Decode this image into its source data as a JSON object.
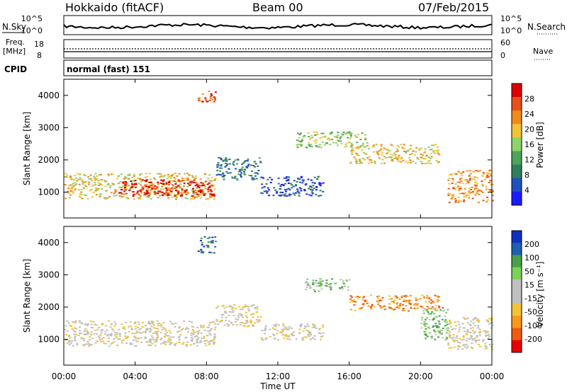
{
  "header": {
    "site": "Hokkaido (fitACF)",
    "beam": "Beam 00",
    "date": "07/Feb/2015"
  },
  "strip": {
    "nsky_label": "N.Sky",
    "nsearch_label": "N.Search",
    "freq_label_1": "Freq.",
    "freq_label_2": "[MHz]",
    "nave_label": "Nave",
    "cpid_label": "CPID",
    "noise_ticks": [
      "10^5",
      "10^0"
    ],
    "freq_ticks": [
      "18",
      "8"
    ],
    "nave_ticks": [
      "60",
      "0"
    ],
    "cpid_value": "normal (fast) 151"
  },
  "x_axis": {
    "label": "Time UT",
    "ticks": [
      "00:00",
      "04:00",
      "08:00",
      "12:00",
      "16:00",
      "20:00",
      "00:00"
    ]
  },
  "colors": {
    "power_scale": [
      "#1a1aff",
      "#2050c0",
      "#2f7f5f",
      "#4da35a",
      "#8fd26a",
      "#f2c33a",
      "#f08a1c",
      "#e8501a",
      "#dd0000"
    ],
    "velocity_scale": [
      "#e80000",
      "#f05a10",
      "#f79a1a",
      "#f2c33a",
      "#c0c0c0",
      "#c0c0c0",
      "#7dd05a",
      "#4aa04a",
      "#2060b0",
      "#1030c0"
    ]
  },
  "chart_data": [
    {
      "type": "heatmap",
      "name": "power",
      "ylabel": "Slant Range [km]",
      "yticks": [
        "1000",
        "2000",
        "3000",
        "4000"
      ],
      "ylim": [
        200,
        4500
      ],
      "xlim": [
        0,
        24
      ],
      "colorbar_label": "Power [dB]",
      "colorbar_ticks": [
        "28",
        "24",
        "20",
        "16",
        "12",
        "8",
        "4"
      ],
      "regions": [
        {
          "t0": 0.0,
          "t1": 8.5,
          "r0": 800,
          "r1": 1600,
          "level": 5
        },
        {
          "t0": 3.0,
          "t1": 8.5,
          "r0": 900,
          "r1": 1400,
          "level": 8
        },
        {
          "t0": 8.5,
          "t1": 11.0,
          "r0": 1400,
          "r1": 2100,
          "level": 2
        },
        {
          "t0": 11.0,
          "t1": 14.5,
          "r0": 900,
          "r1": 1500,
          "level": 1
        },
        {
          "t0": 13.0,
          "t1": 17.0,
          "r0": 2400,
          "r1": 2900,
          "level": 4
        },
        {
          "t0": 16.0,
          "t1": 21.0,
          "r0": 1900,
          "r1": 2500,
          "level": 5
        },
        {
          "t0": 21.5,
          "t1": 24.0,
          "r0": 700,
          "r1": 1700,
          "level": 6
        },
        {
          "t0": 7.5,
          "t1": 8.5,
          "r0": 3800,
          "r1": 4200,
          "level": 7
        }
      ]
    },
    {
      "type": "heatmap",
      "name": "velocity",
      "ylabel": "Slant Range [km]",
      "yticks": [
        "1000",
        "2000",
        "3000",
        "4000"
      ],
      "ylim": [
        200,
        4500
      ],
      "xlim": [
        0,
        24
      ],
      "colorbar_label": "Velocity [m s⁻¹]",
      "colorbar_ticks": [
        "200",
        "100",
        "50",
        "15",
        "-15",
        "-50",
        "-100",
        "-200"
      ],
      "regions": [
        {
          "t0": 0.0,
          "t1": 8.5,
          "r0": 800,
          "r1": 1600,
          "level": 4
        },
        {
          "t0": 8.5,
          "t1": 11.0,
          "r0": 1400,
          "r1": 2100,
          "level": 4
        },
        {
          "t0": 11.0,
          "t1": 14.5,
          "r0": 1000,
          "r1": 1500,
          "level": 4
        },
        {
          "t0": 13.5,
          "t1": 16.0,
          "r0": 2500,
          "r1": 2900,
          "level": 6
        },
        {
          "t0": 16.0,
          "t1": 21.0,
          "r0": 1900,
          "r1": 2400,
          "level": 2
        },
        {
          "t0": 21.5,
          "t1": 24.0,
          "r0": 700,
          "r1": 1700,
          "level": 4
        },
        {
          "t0": 20.0,
          "t1": 21.5,
          "r0": 1000,
          "r1": 2000,
          "level": 6
        },
        {
          "t0": 7.5,
          "t1": 8.5,
          "r0": 3700,
          "r1": 4200,
          "level": 8
        }
      ]
    }
  ]
}
